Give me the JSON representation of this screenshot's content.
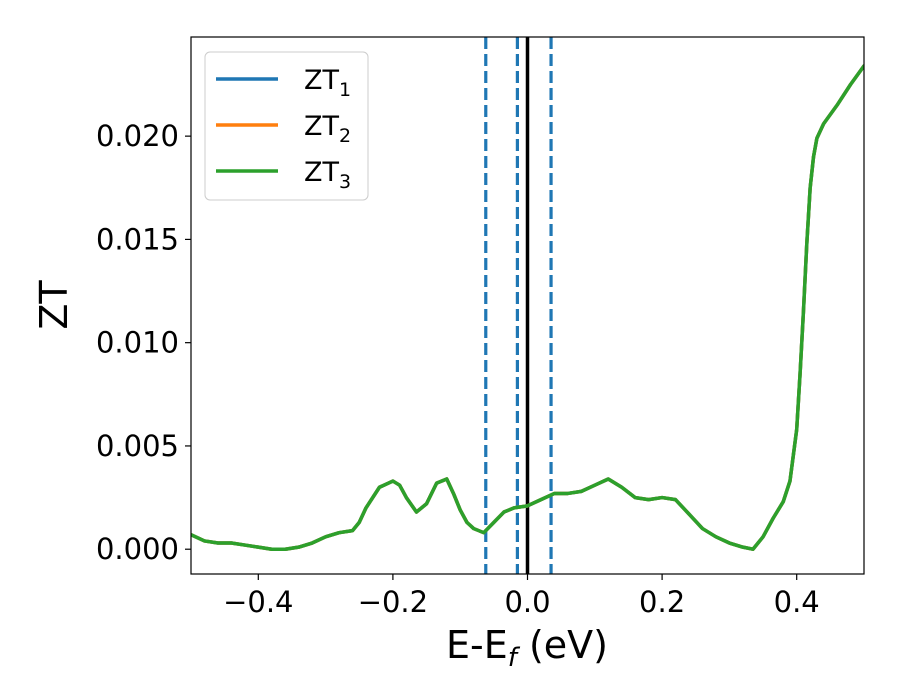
{
  "chart_data": {
    "type": "line",
    "title": "",
    "xlabel": {
      "main": "E-E",
      "sub": "f",
      "unit": " (eV)"
    },
    "ylabel": "ZT",
    "xlim": [
      -0.5,
      0.5
    ],
    "ylim": [
      -0.0012,
      0.0248
    ],
    "xticks": [
      -0.4,
      -0.2,
      0.0,
      0.2,
      0.4
    ],
    "xtick_labels": [
      "−0.4",
      "−0.2",
      "0.0",
      "0.2",
      "0.4"
    ],
    "yticks": [
      0.0,
      0.005,
      0.01,
      0.015,
      0.02
    ],
    "ytick_labels": [
      "0.000",
      "0.005",
      "0.010",
      "0.015",
      "0.020"
    ],
    "grid": false,
    "legend_position": "top-left",
    "vlines": [
      {
        "x": -0.062,
        "style": "dashed",
        "color": "#1f77b4"
      },
      {
        "x": -0.015,
        "style": "dashed",
        "color": "#1f77b4"
      },
      {
        "x": 0.035,
        "style": "dashed",
        "color": "#1f77b4"
      },
      {
        "x": 0.0,
        "style": "solid",
        "color": "#000000"
      }
    ],
    "x": [
      -0.5,
      -0.48,
      -0.46,
      -0.44,
      -0.42,
      -0.4,
      -0.38,
      -0.36,
      -0.34,
      -0.32,
      -0.3,
      -0.28,
      -0.26,
      -0.25,
      -0.24,
      -0.22,
      -0.2,
      -0.19,
      -0.18,
      -0.165,
      -0.15,
      -0.135,
      -0.12,
      -0.11,
      -0.1,
      -0.09,
      -0.08,
      -0.065,
      -0.05,
      -0.035,
      -0.02,
      0.0,
      0.02,
      0.04,
      0.06,
      0.08,
      0.1,
      0.12,
      0.14,
      0.16,
      0.18,
      0.2,
      0.22,
      0.24,
      0.26,
      0.28,
      0.3,
      0.32,
      0.335,
      0.35,
      0.365,
      0.38,
      0.39,
      0.4,
      0.405,
      0.41,
      0.415,
      0.42,
      0.425,
      0.43,
      0.44,
      0.46,
      0.48,
      0.5
    ],
    "series": [
      {
        "name": "ZT",
        "sub": "1",
        "color": "#1f77b4",
        "values": [
          0.0007,
          0.0004,
          0.0003,
          0.0003,
          0.0002,
          0.0001,
          0.0,
          0.0,
          0.0001,
          0.0003,
          0.0006,
          0.0008,
          0.0009,
          0.0013,
          0.002,
          0.003,
          0.0033,
          0.0031,
          0.0025,
          0.0018,
          0.0022,
          0.0032,
          0.0034,
          0.0027,
          0.0019,
          0.0013,
          0.001,
          0.0008,
          0.0013,
          0.0018,
          0.002,
          0.0021,
          0.0024,
          0.0027,
          0.0027,
          0.0028,
          0.0031,
          0.0034,
          0.003,
          0.0025,
          0.0024,
          0.0025,
          0.0024,
          0.0017,
          0.001,
          0.0006,
          0.0003,
          0.0001,
          0.0,
          0.0006,
          0.0015,
          0.0023,
          0.0033,
          0.0058,
          0.0085,
          0.0115,
          0.0148,
          0.0175,
          0.019,
          0.0199,
          0.0206,
          0.0215,
          0.0225,
          0.0234
        ]
      },
      {
        "name": "ZT",
        "sub": "2",
        "color": "#ff7f0e",
        "values": [
          0.0007,
          0.0004,
          0.0003,
          0.0003,
          0.0002,
          0.0001,
          0.0,
          0.0,
          0.0001,
          0.0003,
          0.0006,
          0.0008,
          0.0009,
          0.0013,
          0.002,
          0.003,
          0.0033,
          0.0031,
          0.0025,
          0.0018,
          0.0022,
          0.0032,
          0.0034,
          0.0027,
          0.0019,
          0.0013,
          0.001,
          0.0008,
          0.0013,
          0.0018,
          0.002,
          0.0021,
          0.0024,
          0.0027,
          0.0027,
          0.0028,
          0.0031,
          0.0034,
          0.003,
          0.0025,
          0.0024,
          0.0025,
          0.0024,
          0.0017,
          0.001,
          0.0006,
          0.0003,
          0.0001,
          0.0,
          0.0006,
          0.0015,
          0.0023,
          0.0033,
          0.0058,
          0.0085,
          0.0115,
          0.0148,
          0.0175,
          0.019,
          0.0199,
          0.0206,
          0.0215,
          0.0225,
          0.0234
        ]
      },
      {
        "name": "ZT",
        "sub": "3",
        "color": "#2ca02c",
        "values": [
          0.0007,
          0.0004,
          0.0003,
          0.0003,
          0.0002,
          0.0001,
          0.0,
          0.0,
          0.0001,
          0.0003,
          0.0006,
          0.0008,
          0.0009,
          0.0013,
          0.002,
          0.003,
          0.0033,
          0.0031,
          0.0025,
          0.0018,
          0.0022,
          0.0032,
          0.0034,
          0.0027,
          0.0019,
          0.0013,
          0.001,
          0.0008,
          0.0013,
          0.0018,
          0.002,
          0.0021,
          0.0024,
          0.0027,
          0.0027,
          0.0028,
          0.0031,
          0.0034,
          0.003,
          0.0025,
          0.0024,
          0.0025,
          0.0024,
          0.0017,
          0.001,
          0.0006,
          0.0003,
          0.0001,
          0.0,
          0.0006,
          0.0015,
          0.0023,
          0.0033,
          0.0058,
          0.0085,
          0.0115,
          0.0148,
          0.0175,
          0.019,
          0.0199,
          0.0206,
          0.0215,
          0.0225,
          0.0234
        ]
      }
    ]
  }
}
